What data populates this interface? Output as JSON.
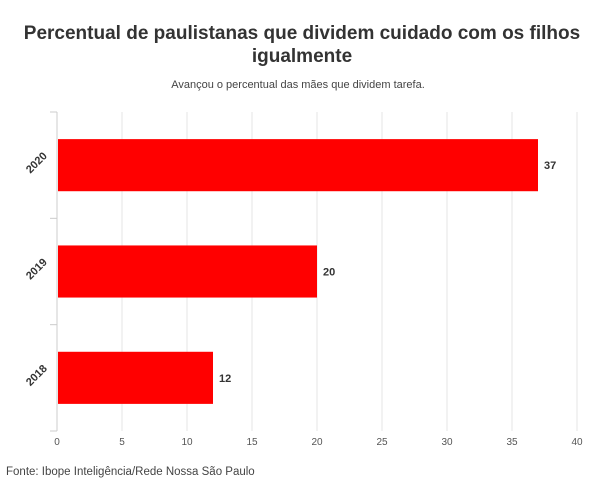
{
  "chart_data": {
    "type": "bar",
    "orientation": "horizontal",
    "title": "Percentual de paulistanas que dividem cuidado com os filhos igualmente",
    "subtitle": "Avançou o percentual das mães que dividem tarefa.",
    "categories": [
      "2020",
      "2019",
      "2018"
    ],
    "values": [
      37,
      20,
      12
    ],
    "data_labels": [
      "37",
      "20",
      "12"
    ],
    "xlim": [
      0,
      40
    ],
    "x_ticks": [
      "0",
      "5",
      "10",
      "15",
      "20",
      "25",
      "30",
      "35",
      "40"
    ],
    "xlabel": "",
    "ylabel": "",
    "grid": true,
    "bar_color": "#ff0000",
    "source": "Fonte: Ibope Inteligência/Rede Nossa São Paulo"
  }
}
